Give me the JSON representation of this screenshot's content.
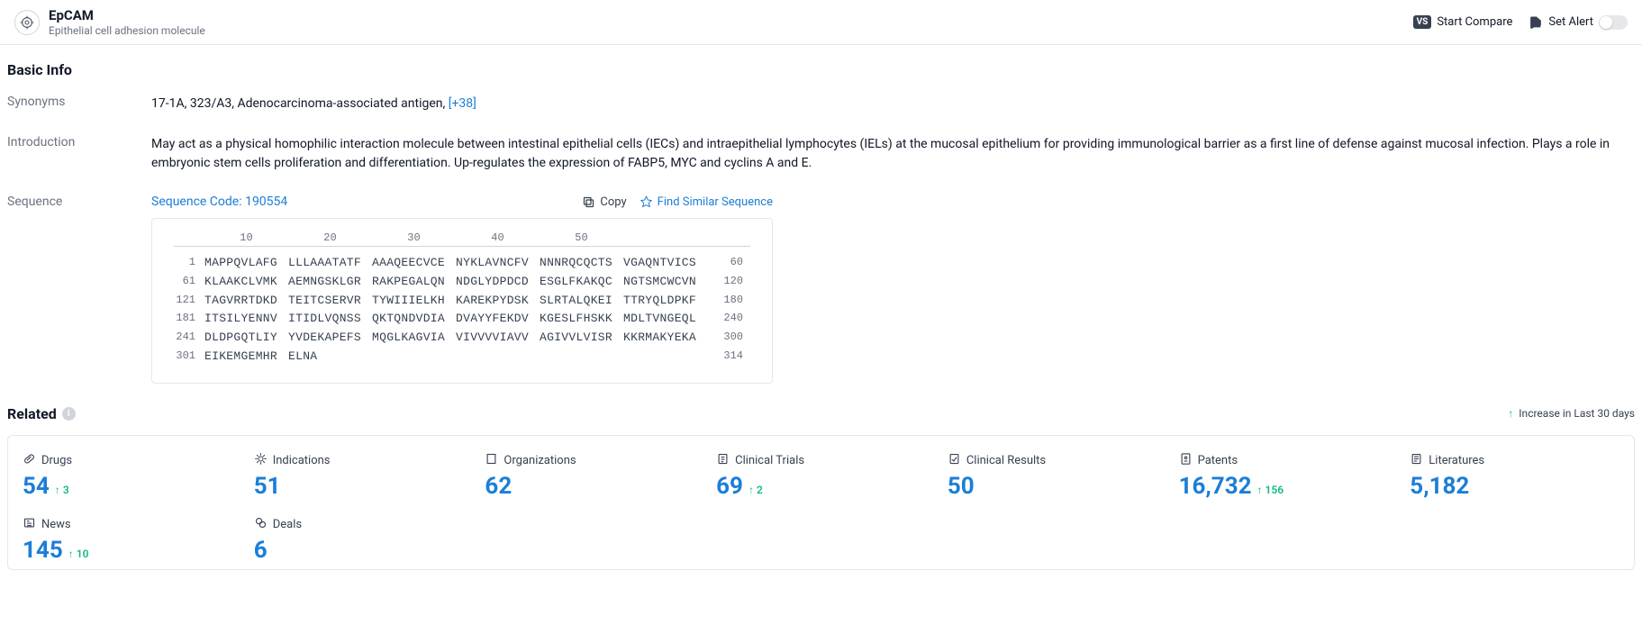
{
  "header": {
    "title": "EpCAM",
    "subtitle": "Epithelial cell adhesion molecule",
    "start_compare": "Start Compare",
    "vs_badge": "VS",
    "set_alert": "Set Alert"
  },
  "basic_info": {
    "section_title": "Basic Info",
    "synonyms_label": "Synonyms",
    "synonyms_list": "17-1A,  323/A3,  Adenocarcinoma-associated antigen,  ",
    "synonyms_more": "[+38]",
    "introduction_label": "Introduction",
    "introduction_text": "May act as a physical homophilic interaction molecule between intestinal epithelial cells (IECs) and intraepithelial lymphocytes (IELs) at the mucosal epithelium for providing immunological barrier as a first line of defense against mucosal infection. Plays a role in embryonic stem cells proliferation and differentiation. Up-regulates the expression of FABP5, MYC and cyclins A and E.",
    "sequence_label": "Sequence",
    "sequence_code_label": "Sequence Code: 190554",
    "copy_label": "Copy",
    "find_similar_label": "Find Similar Sequence"
  },
  "sequence": {
    "ruler": [
      "10",
      "20",
      "30",
      "40",
      "50"
    ],
    "rows": [
      {
        "start": "1",
        "chunks": [
          "MAPPQVLAFG",
          "LLLAAATATF",
          "AAAQEECVCE",
          "NYKLAVNCFV",
          "NNNRQCQCTS",
          "VGAQNTVICS"
        ],
        "end": "60"
      },
      {
        "start": "61",
        "chunks": [
          "KLAAKCLVMK",
          "AEMNGSKLGR",
          "RAKPEGALQN",
          "NDGLYDPDCD",
          "ESGLFKAKQC",
          "NGTSMCWCVN"
        ],
        "end": "120"
      },
      {
        "start": "121",
        "chunks": [
          "TAGVRRTDKD",
          "TEITCSERVR",
          "TYWIIIELKH",
          "KAREKPYDSK",
          "SLRTALQKEI",
          "TTRYQLDPKF"
        ],
        "end": "180"
      },
      {
        "start": "181",
        "chunks": [
          "ITSILYENNV",
          "ITIDLVQNSS",
          "QKTQNDVDIA",
          "DVAYYFEKDV",
          "KGESLFHSKK",
          "MDLTVNGEQL"
        ],
        "end": "240"
      },
      {
        "start": "241",
        "chunks": [
          "DLDPGQTLIY",
          "YVDEKAPEFS",
          "MQGLKAGVIA",
          "VIVVVVIAVV",
          "AGIVVLVISR",
          "KKRMAKYEKA"
        ],
        "end": "300"
      },
      {
        "start": "301",
        "chunks": [
          "EIKEMGEMHR",
          "ELNA",
          "",
          "",
          "",
          ""
        ],
        "end": "314"
      }
    ]
  },
  "related": {
    "section_title": "Related",
    "legend_text": "Increase in Last 30 days",
    "stats": [
      {
        "label": "Drugs",
        "value": "54",
        "delta": "3"
      },
      {
        "label": "Indications",
        "value": "51",
        "delta": ""
      },
      {
        "label": "Organizations",
        "value": "62",
        "delta": ""
      },
      {
        "label": "Clinical Trials",
        "value": "69",
        "delta": "2"
      },
      {
        "label": "Clinical Results",
        "value": "50",
        "delta": ""
      },
      {
        "label": "Patents",
        "value": "16,732",
        "delta": "156"
      },
      {
        "label": "Literatures",
        "value": "5,182",
        "delta": ""
      },
      {
        "label": "News",
        "value": "145",
        "delta": "10"
      },
      {
        "label": "Deals",
        "value": "6",
        "delta": ""
      }
    ]
  },
  "colors": {
    "link": "#1c7ed6",
    "text_secondary": "#6b7280",
    "success": "#10b981"
  }
}
